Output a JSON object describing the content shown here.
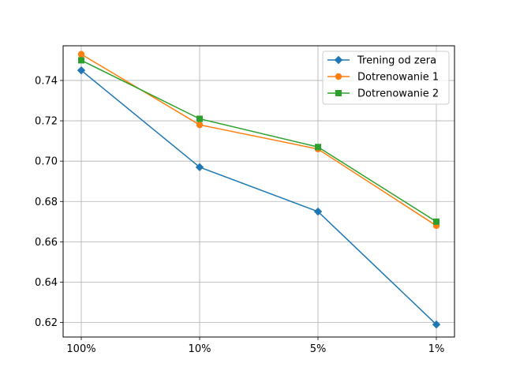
{
  "chart_data": {
    "type": "line",
    "categories": [
      "100%",
      "10%",
      "5%",
      "1%"
    ],
    "series": [
      {
        "name": "Trening od zera",
        "values": [
          0.745,
          0.697,
          0.675,
          0.619
        ],
        "color": "#1f77b4",
        "marker": "diamond"
      },
      {
        "name": "Dotrenowanie 1",
        "values": [
          0.753,
          0.718,
          0.706,
          0.668
        ],
        "color": "#ff7f0e",
        "marker": "circle"
      },
      {
        "name": "Dotrenowanie 2",
        "values": [
          0.75,
          0.721,
          0.707,
          0.67
        ],
        "color": "#2ca02c",
        "marker": "square"
      }
    ],
    "y_ticks": [
      "0.62",
      "0.64",
      "0.66",
      "0.68",
      "0.70",
      "0.72",
      "0.74"
    ],
    "ylim": [
      0.6128,
      0.7572
    ],
    "grid": true,
    "legend_position": "top-right",
    "title": "",
    "xlabel": "",
    "ylabel": ""
  }
}
